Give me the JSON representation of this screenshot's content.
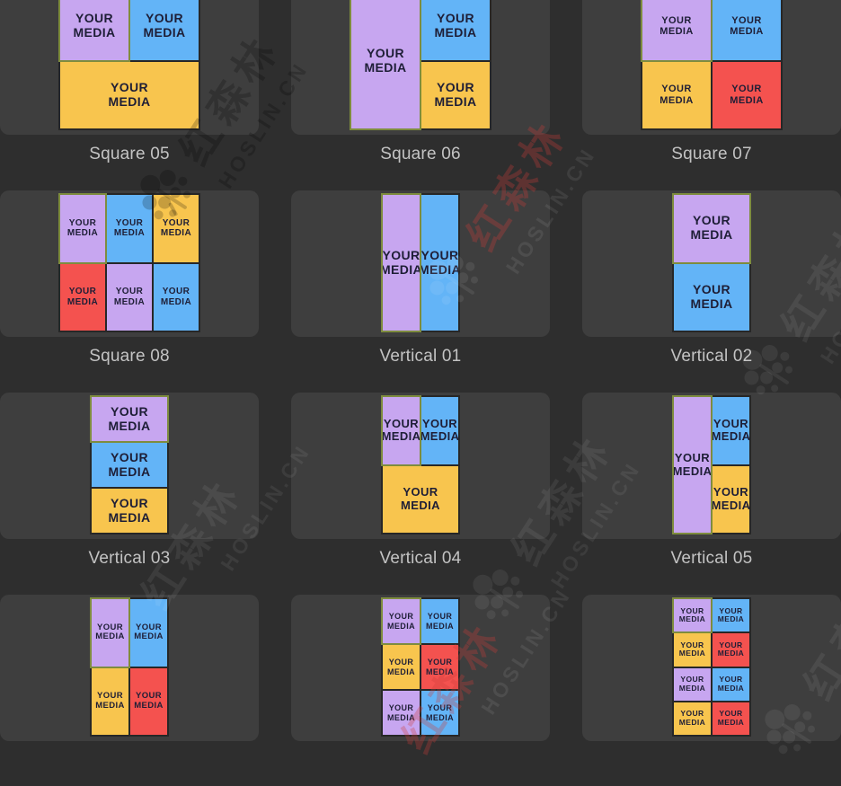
{
  "media_label": "YOUR\nMEDIA",
  "palette": {
    "purple": "#c7a6f0",
    "blue": "#63b4f7",
    "yellow": "#f8c54e",
    "red": "#f4524f",
    "block_text": "#1e1e36",
    "first_block_border": "#7e8c3e",
    "grid_line": "#272727",
    "card_bg": "#3e3e3e",
    "page_bg": "#2e2e2e",
    "caption_text": "#c3c3c3"
  },
  "watermark": {
    "cn": "红森林",
    "en": "HOSLIN.CN"
  },
  "templates": [
    {
      "label": "Square 05",
      "shape": "square",
      "fs": 14,
      "cols": 2,
      "rows": 2,
      "blocks": [
        {
          "color": "purple",
          "area": "1 / 1 / 2 / 2"
        },
        {
          "color": "blue",
          "area": "1 / 2 / 2 / 3"
        },
        {
          "color": "yellow",
          "area": "2 / 1 / 3 / 3"
        }
      ]
    },
    {
      "label": "Square 06",
      "shape": "square",
      "fs": 14,
      "cols": 2,
      "rows": 2,
      "blocks": [
        {
          "color": "purple",
          "area": "1 / 1 / 3 / 2"
        },
        {
          "color": "blue",
          "area": "1 / 2 / 2 / 3"
        },
        {
          "color": "yellow",
          "area": "2 / 2 / 3 / 3"
        }
      ]
    },
    {
      "label": "Square 07",
      "shape": "square",
      "fs": 11,
      "cols": 2,
      "rows": 2,
      "blocks": [
        {
          "color": "purple",
          "area": "1 / 1 / 2 / 2"
        },
        {
          "color": "blue",
          "area": "1 / 2 / 2 / 3"
        },
        {
          "color": "yellow",
          "area": "2 / 1 / 3 / 2"
        },
        {
          "color": "red",
          "area": "2 / 2 / 3 / 3"
        }
      ]
    },
    {
      "label": "Square 08",
      "shape": "square",
      "fs": 10,
      "cols": 3,
      "rows": 2,
      "blocks": [
        {
          "color": "purple",
          "area": "1 / 1 / 2 / 2"
        },
        {
          "color": "blue",
          "area": "1 / 2 / 2 / 3"
        },
        {
          "color": "yellow",
          "area": "1 / 3 / 2 / 4"
        },
        {
          "color": "red",
          "area": "2 / 1 / 3 / 2"
        },
        {
          "color": "purple",
          "area": "2 / 2 / 3 / 3"
        },
        {
          "color": "blue",
          "area": "2 / 3 / 3 / 4"
        }
      ]
    },
    {
      "label": "Vertical 01",
      "shape": "vertical",
      "fs": 14,
      "cols": 2,
      "rows": 1,
      "blocks": [
        {
          "color": "purple",
          "area": "1 / 1 / 2 / 2"
        },
        {
          "color": "blue",
          "area": "1 / 2 / 2 / 3"
        }
      ]
    },
    {
      "label": "Vertical 02",
      "shape": "vertical",
      "fs": 14,
      "cols": 1,
      "rows": 2,
      "blocks": [
        {
          "color": "purple",
          "area": "1 / 1 / 2 / 2"
        },
        {
          "color": "blue",
          "area": "2 / 1 / 3 / 2"
        }
      ]
    },
    {
      "label": "Vertical 03",
      "shape": "vertical",
      "fs": 14,
      "cols": 1,
      "rows": 3,
      "blocks": [
        {
          "color": "purple",
          "area": "1 / 1 / 2 / 2"
        },
        {
          "color": "blue",
          "area": "2 / 1 / 3 / 2"
        },
        {
          "color": "yellow",
          "area": "3 / 1 / 4 / 2"
        }
      ]
    },
    {
      "label": "Vertical 04",
      "shape": "vertical",
      "fs": 13,
      "cols": 2,
      "rows": 2,
      "blocks": [
        {
          "color": "purple",
          "area": "1 / 1 / 2 / 2"
        },
        {
          "color": "blue",
          "area": "1 / 2 / 2 / 3"
        },
        {
          "color": "yellow",
          "area": "2 / 1 / 3 / 3"
        }
      ]
    },
    {
      "label": "Vertical 05",
      "shape": "vertical",
      "fs": 13,
      "cols": 2,
      "rows": 2,
      "blocks": [
        {
          "color": "purple",
          "area": "1 / 1 / 3 / 2"
        },
        {
          "color": "blue",
          "area": "1 / 2 / 2 / 3"
        },
        {
          "color": "yellow",
          "area": "2 / 2 / 3 / 3"
        }
      ]
    },
    {
      "label": "",
      "shape": "vertical",
      "fs": 9.5,
      "cols": 2,
      "rows": 2,
      "blocks": [
        {
          "color": "purple",
          "area": "1 / 1 / 2 / 2"
        },
        {
          "color": "blue",
          "area": "1 / 2 / 2 / 3"
        },
        {
          "color": "yellow",
          "area": "2 / 1 / 3 / 2"
        },
        {
          "color": "red",
          "area": "2 / 2 / 3 / 3"
        }
      ]
    },
    {
      "label": "",
      "shape": "vertical",
      "fs": 9,
      "cols": 2,
      "rows": 3,
      "blocks": [
        {
          "color": "purple",
          "area": "1 / 1 / 2 / 2"
        },
        {
          "color": "blue",
          "area": "1 / 2 / 2 / 3"
        },
        {
          "color": "yellow",
          "area": "2 / 1 / 3 / 2"
        },
        {
          "color": "red",
          "area": "2 / 2 / 3 / 3"
        },
        {
          "color": "purple",
          "area": "3 / 1 / 4 / 2"
        },
        {
          "color": "blue",
          "area": "3 / 2 / 4 / 3"
        }
      ]
    },
    {
      "label": "",
      "shape": "vertical",
      "fs": 8.5,
      "cols": 2,
      "rows": 4,
      "blocks": [
        {
          "color": "purple",
          "area": "1 / 1 / 2 / 2"
        },
        {
          "color": "blue",
          "area": "1 / 2 / 2 / 3"
        },
        {
          "color": "yellow",
          "area": "2 / 1 / 3 / 2"
        },
        {
          "color": "red",
          "area": "2 / 2 / 3 / 3"
        },
        {
          "color": "purple",
          "area": "3 / 1 / 4 / 2"
        },
        {
          "color": "blue",
          "area": "3 / 2 / 4 / 3"
        },
        {
          "color": "yellow",
          "area": "4 / 1 / 5 / 2"
        },
        {
          "color": "red",
          "area": "4 / 2 / 5 / 3"
        }
      ]
    }
  ]
}
